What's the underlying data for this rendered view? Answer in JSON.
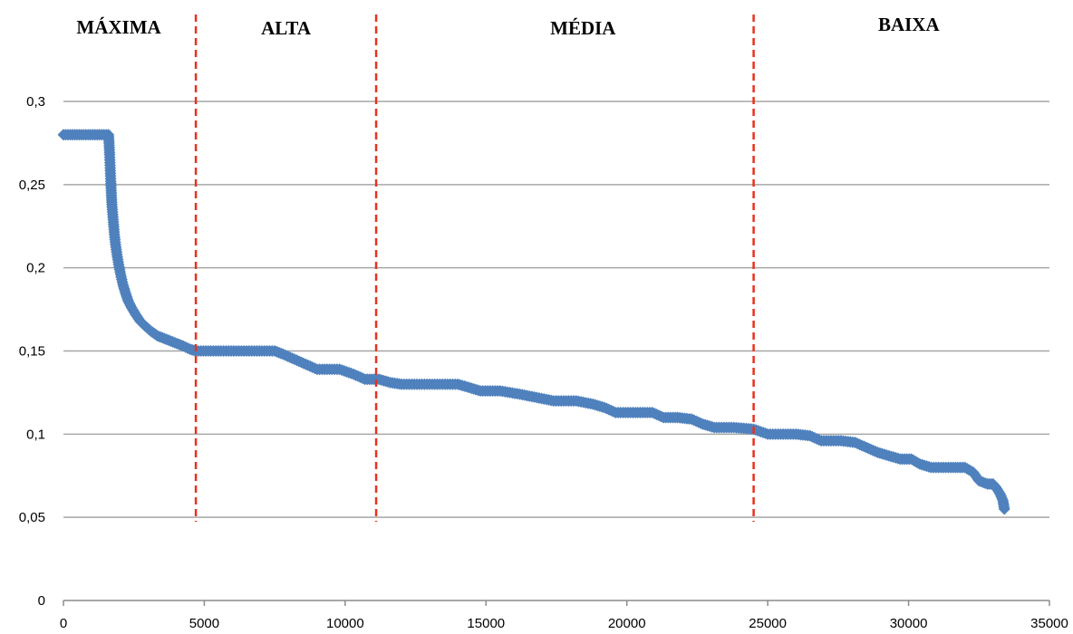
{
  "chart_data": {
    "type": "scatter",
    "xlim": [
      0,
      35000
    ],
    "ylim": [
      0,
      0.3
    ],
    "x_ticks": [
      "0",
      "5000",
      "10000",
      "15000",
      "20000",
      "25000",
      "30000",
      "35000"
    ],
    "y_ticks": [
      "0",
      "0,05",
      "0,1",
      "0,15",
      "0,2",
      "0,25",
      "0,3"
    ],
    "grid": "horizontal",
    "legend": "none",
    "regions": [
      {
        "label": "MÁXIMA"
      },
      {
        "label": "ALTA"
      },
      {
        "label": "MÉDIA"
      },
      {
        "label": "BAIXA"
      }
    ],
    "region_boundaries": [
      4700,
      11100,
      24500
    ],
    "series": [
      {
        "color": "#4f81bd",
        "points": [
          [
            0,
            0.28
          ],
          [
            400,
            0.28
          ],
          [
            800,
            0.28
          ],
          [
            1200,
            0.28
          ],
          [
            1600,
            0.28
          ],
          [
            1620,
            0.275
          ],
          [
            1640,
            0.268
          ],
          [
            1660,
            0.26
          ],
          [
            1680,
            0.252
          ],
          [
            1700,
            0.245
          ],
          [
            1720,
            0.238
          ],
          [
            1750,
            0.232
          ],
          [
            1780,
            0.226
          ],
          [
            1810,
            0.22
          ],
          [
            1850,
            0.214
          ],
          [
            1900,
            0.208
          ],
          [
            1960,
            0.202
          ],
          [
            2030,
            0.196
          ],
          [
            2110,
            0.19
          ],
          [
            2200,
            0.185
          ],
          [
            2300,
            0.18
          ],
          [
            2420,
            0.176
          ],
          [
            2560,
            0.172
          ],
          [
            2720,
            0.168
          ],
          [
            2900,
            0.165
          ],
          [
            3100,
            0.162
          ],
          [
            3350,
            0.159
          ],
          [
            3650,
            0.157
          ],
          [
            3950,
            0.155
          ],
          [
            4250,
            0.153
          ],
          [
            4500,
            0.151
          ],
          [
            4700,
            0.15
          ],
          [
            5500,
            0.15
          ],
          [
            6500,
            0.15
          ],
          [
            7500,
            0.15
          ],
          [
            7800,
            0.148
          ],
          [
            8200,
            0.145
          ],
          [
            8600,
            0.142
          ],
          [
            9000,
            0.139
          ],
          [
            9800,
            0.139
          ],
          [
            10300,
            0.136
          ],
          [
            10700,
            0.133
          ],
          [
            11200,
            0.133
          ],
          [
            11600,
            0.131
          ],
          [
            12000,
            0.13
          ],
          [
            13000,
            0.13
          ],
          [
            14000,
            0.13
          ],
          [
            14400,
            0.128
          ],
          [
            14800,
            0.126
          ],
          [
            15500,
            0.126
          ],
          [
            16200,
            0.124
          ],
          [
            16800,
            0.122
          ],
          [
            17400,
            0.12
          ],
          [
            18200,
            0.12
          ],
          [
            18800,
            0.118
          ],
          [
            19200,
            0.116
          ],
          [
            19600,
            0.113
          ],
          [
            20300,
            0.113
          ],
          [
            20900,
            0.113
          ],
          [
            21300,
            0.11
          ],
          [
            21800,
            0.11
          ],
          [
            22300,
            0.109
          ],
          [
            22700,
            0.106
          ],
          [
            23100,
            0.104
          ],
          [
            23800,
            0.104
          ],
          [
            24500,
            0.103
          ],
          [
            25000,
            0.1
          ],
          [
            26000,
            0.1
          ],
          [
            26500,
            0.099
          ],
          [
            26900,
            0.096
          ],
          [
            27600,
            0.096
          ],
          [
            28100,
            0.095
          ],
          [
            28500,
            0.092
          ],
          [
            28900,
            0.089
          ],
          [
            29300,
            0.087
          ],
          [
            29700,
            0.085
          ],
          [
            30100,
            0.085
          ],
          [
            30400,
            0.082
          ],
          [
            30800,
            0.08
          ],
          [
            31500,
            0.08
          ],
          [
            32000,
            0.08
          ],
          [
            32300,
            0.077
          ],
          [
            32500,
            0.072
          ],
          [
            32800,
            0.07
          ],
          [
            33000,
            0.07
          ],
          [
            33100,
            0.068
          ],
          [
            33250,
            0.064
          ],
          [
            33350,
            0.06
          ],
          [
            33400,
            0.055
          ]
        ]
      }
    ]
  }
}
